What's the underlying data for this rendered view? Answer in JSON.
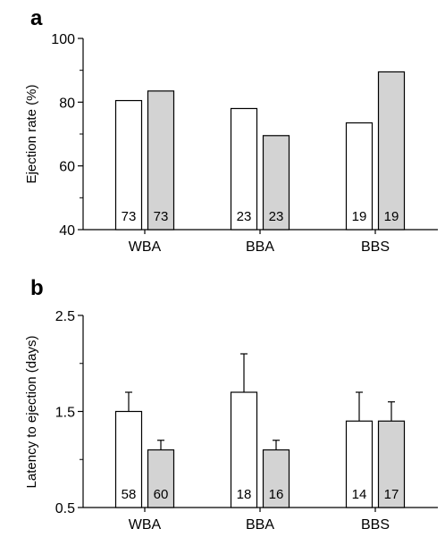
{
  "chart_data": [
    {
      "type": "bar",
      "panel_label": "a",
      "title": "",
      "xlabel": "",
      "ylabel": "Ejection rate (%)",
      "ylim": [
        40,
        100
      ],
      "yticks": [
        "40",
        "60",
        "80",
        "100"
      ],
      "categories": [
        "WBA",
        "BBA",
        "BBS"
      ],
      "series": [
        {
          "fill": "#ffffff",
          "values": [
            80.5,
            78,
            73.5
          ],
          "n": [
            "73",
            "23",
            "19"
          ]
        },
        {
          "fill": "#d3d3d3",
          "values": [
            83.5,
            69.5,
            89.5
          ],
          "n": [
            "73",
            "23",
            "19"
          ]
        }
      ],
      "error_bars": false,
      "grid": false
    },
    {
      "type": "bar",
      "panel_label": "b",
      "title": "",
      "xlabel": "",
      "ylabel": "Latency to ejection (days)",
      "ylim": [
        0.5,
        2.5
      ],
      "yticks": [
        "0.5",
        "1.5",
        "2.5"
      ],
      "categories": [
        "WBA",
        "BBA",
        "BBS"
      ],
      "series": [
        {
          "fill": "#ffffff",
          "values": [
            1.5,
            1.7,
            1.4
          ],
          "errors": [
            0.2,
            0.4,
            0.3
          ],
          "n": [
            "58",
            "18",
            "14"
          ]
        },
        {
          "fill": "#d3d3d3",
          "values": [
            1.1,
            1.1,
            1.4
          ],
          "errors": [
            0.1,
            0.1,
            0.2
          ],
          "n": [
            "60",
            "16",
            "17"
          ]
        }
      ],
      "error_bars": true,
      "grid": false
    }
  ]
}
